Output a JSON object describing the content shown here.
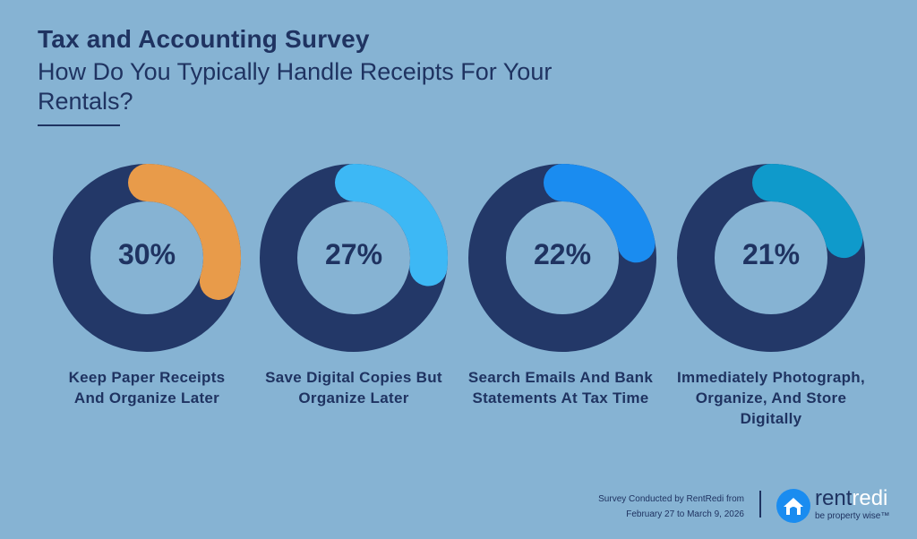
{
  "header": {
    "title": "Tax and Accounting Survey",
    "subtitle": "How Do You Typically Handle Receipts For Your Rentals?"
  },
  "chart_data": {
    "type": "donut",
    "categories": [
      "Keep Paper Receipts And Organize Later",
      "Save Digital Copies But Organize Later",
      "Search Emails And Bank Statements At Tax Time",
      "Immediately Photograph, Organize, And Store Digitally"
    ],
    "values": [
      30,
      27,
      22,
      21
    ],
    "value_labels": [
      "30%",
      "27%",
      "22%",
      "21%"
    ],
    "colors": [
      "#e89b4a",
      "#3db8f5",
      "#1a8cf0",
      "#0f9acb"
    ],
    "track_color": "#233868"
  },
  "footer": {
    "line1": "Survey Conducted by RentRedi from",
    "line2": "February 27 to March 9, 2026"
  },
  "logo": {
    "name_part1": "rent",
    "name_part2": "redi",
    "tagline": "be property wise™"
  }
}
